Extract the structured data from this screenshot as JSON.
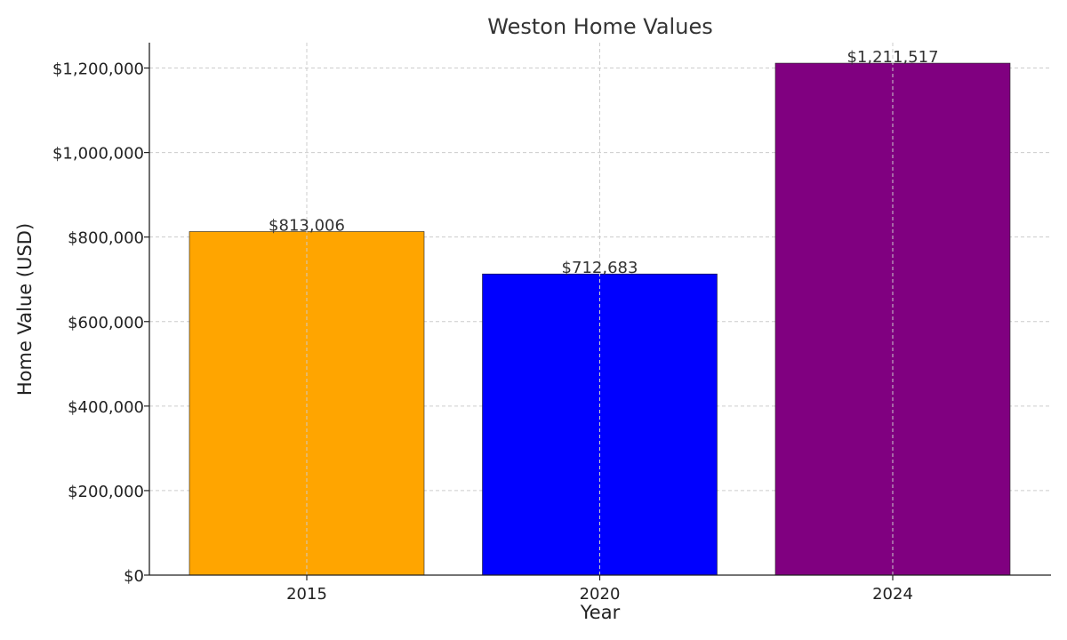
{
  "chart_data": {
    "type": "bar",
    "title": "Weston Home Values",
    "xlabel": "Year",
    "ylabel": "Home Value (USD)",
    "categories": [
      "2015",
      "2020",
      "2024"
    ],
    "values": [
      813006,
      712683,
      1211517
    ],
    "value_labels": [
      "$813,006",
      "$712,683",
      "$1,211,517"
    ],
    "bar_colors": [
      "#FFA500",
      "#0000FF",
      "#800080"
    ],
    "ylim": [
      0,
      1260000
    ],
    "y_ticks": [
      0,
      200000,
      400000,
      600000,
      800000,
      1000000,
      1200000
    ],
    "y_tick_labels": [
      "$0",
      "$200,000",
      "$400,000",
      "$600,000",
      "$800,000",
      "$1,000,000",
      "$1,200,000"
    ],
    "grid": true,
    "grid_style": "dashed",
    "legend": "none"
  }
}
